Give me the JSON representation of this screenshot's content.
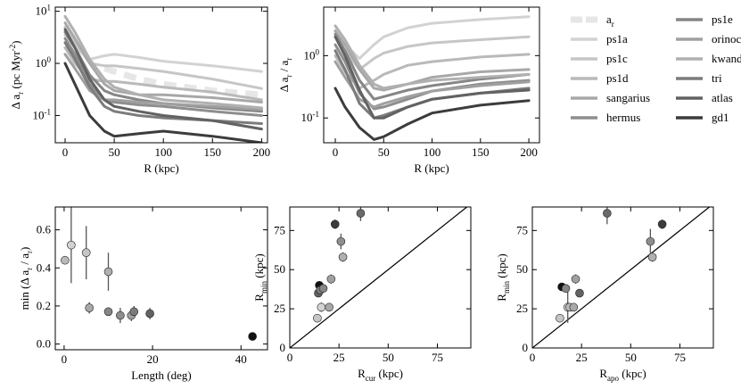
{
  "chart_data": [
    {
      "type": "line",
      "log_y": true,
      "x": [
        0,
        10,
        25,
        40,
        50,
        75,
        100,
        150,
        200
      ],
      "xlim": [
        -10,
        206
      ],
      "xticks": [
        0,
        50,
        100,
        150,
        200
      ],
      "ylim": [
        0.03,
        12
      ],
      "yticks": [
        {
          "value": 0.1,
          "label": "10^{-1}"
        },
        {
          "value": 1,
          "label": "10^{0}"
        },
        {
          "value": 10,
          "label": "10^{1}"
        }
      ],
      "xlabel": "R (kpc)",
      "ylabel": "Δ a_{r} (pc Myr^{-2})",
      "series": [
        {
          "name": "a_{r}",
          "color": "#e6e6e6",
          "dashed": true,
          "values": [
            null,
            null,
            null,
            0.8,
            0.7,
            0.5,
            0.4,
            0.3,
            0.25
          ]
        },
        {
          "name": "ps1a",
          "color": "#d2d2d2",
          "values": [
            3.5,
            2.0,
            1.2,
            1.4,
            1.5,
            1.3,
            1.1,
            0.9,
            0.7
          ]
        },
        {
          "name": "ps1c",
          "color": "#c6c6c6",
          "values": [
            5,
            2.5,
            1.0,
            0.9,
            0.9,
            0.8,
            0.7,
            0.5,
            0.33
          ]
        },
        {
          "name": "ps1d",
          "color": "#b9b9b9",
          "values": [
            2.0,
            1.0,
            0.5,
            0.45,
            0.45,
            0.4,
            0.35,
            0.28,
            0.2
          ]
        },
        {
          "name": "sangarius",
          "color": "#a8a8a8",
          "values": [
            6,
            3,
            1.0,
            0.4,
            0.3,
            0.25,
            0.25,
            0.22,
            0.18
          ]
        },
        {
          "name": "hermus",
          "color": "#8e8e8e",
          "values": [
            3,
            1.5,
            0.4,
            0.2,
            0.18,
            0.16,
            0.15,
            0.12,
            0.1
          ]
        },
        {
          "name": "ps1e",
          "color": "#868686",
          "values": [
            4,
            2,
            0.6,
            0.3,
            0.25,
            0.2,
            0.17,
            0.14,
            0.12
          ]
        },
        {
          "name": "orinoco",
          "color": "#a0a0a0",
          "values": [
            1.5,
            0.8,
            0.3,
            0.2,
            0.2,
            0.18,
            0.17,
            0.15,
            0.13
          ]
        },
        {
          "name": "kwando",
          "color": "#b0b0b0",
          "values": [
            8,
            4,
            1.2,
            0.5,
            0.35,
            0.25,
            0.2,
            0.17,
            0.14
          ]
        },
        {
          "name": "tri",
          "color": "#7c7c7c",
          "values": [
            2.5,
            1.2,
            0.35,
            0.15,
            0.12,
            0.1,
            0.09,
            0.08,
            0.07
          ]
        },
        {
          "name": "atlas",
          "color": "#626262",
          "values": [
            4.5,
            2,
            0.5,
            0.2,
            0.15,
            0.12,
            0.1,
            0.08,
            0.055
          ]
        },
        {
          "name": "gd1",
          "color": "#3c3c3c",
          "values": [
            1.0,
            0.4,
            0.1,
            0.05,
            0.04,
            0.045,
            0.05,
            0.04,
            0.03
          ]
        }
      ]
    },
    {
      "type": "line",
      "log_y": true,
      "x": [
        0,
        10,
        25,
        40,
        50,
        75,
        100,
        150,
        200
      ],
      "xlim": [
        -12,
        211
      ],
      "xticks": [
        0,
        50,
        100,
        150,
        200
      ],
      "ylim": [
        0.04,
        6
      ],
      "yticks": [
        {
          "value": 0.1,
          "label": "10^{-1}"
        },
        {
          "value": 1,
          "label": "10^{0}"
        }
      ],
      "xlabel": "R (kpc)",
      "ylabel": "Δ a_{r} / a_{r}",
      "series": [
        {
          "color": "#d2d2d2",
          "values": [
            2.5,
            1.5,
            0.9,
            1.5,
            2.0,
            2.8,
            3.3,
            3.8,
            4.2
          ]
        },
        {
          "color": "#c6c6c6",
          "values": [
            2.0,
            1.2,
            0.6,
            0.9,
            1.1,
            1.4,
            1.6,
            1.8,
            2.0
          ]
        },
        {
          "color": "#b9b9b9",
          "values": [
            1.0,
            0.55,
            0.3,
            0.4,
            0.5,
            0.7,
            0.8,
            0.95,
            1.05
          ]
        },
        {
          "color": "#a8a8a8",
          "values": [
            2.5,
            1.5,
            0.6,
            0.3,
            0.28,
            0.35,
            0.45,
            0.55,
            0.6
          ]
        },
        {
          "color": "#8e8e8e",
          "values": [
            1.5,
            0.8,
            0.25,
            0.14,
            0.15,
            0.2,
            0.27,
            0.35,
            0.4
          ]
        },
        {
          "color": "#868686",
          "values": [
            2.2,
            1.2,
            0.4,
            0.2,
            0.22,
            0.28,
            0.33,
            0.42,
            0.5
          ]
        },
        {
          "color": "#a0a0a0",
          "values": [
            0.8,
            0.45,
            0.2,
            0.15,
            0.17,
            0.22,
            0.27,
            0.33,
            0.38
          ]
        },
        {
          "color": "#b0b0b0",
          "values": [
            3,
            1.8,
            0.7,
            0.35,
            0.3,
            0.35,
            0.4,
            0.45,
            0.5
          ]
        },
        {
          "color": "#7c7c7c",
          "values": [
            1.2,
            0.6,
            0.17,
            0.1,
            0.11,
            0.15,
            0.2,
            0.25,
            0.3
          ]
        },
        {
          "color": "#626262",
          "values": [
            2.0,
            1.0,
            0.28,
            0.1,
            0.1,
            0.15,
            0.2,
            0.25,
            0.28
          ]
        },
        {
          "color": "#3c3c3c",
          "values": [
            0.3,
            0.15,
            0.07,
            0.045,
            0.05,
            0.08,
            0.12,
            0.16,
            0.19
          ]
        }
      ]
    },
    {
      "type": "scatter",
      "xlim": [
        -2,
        46
      ],
      "xticks": [
        0,
        20,
        40
      ],
      "ylim": [
        -0.03,
        0.72
      ],
      "yticks": [
        {
          "value": 0,
          "label": "0.0"
        },
        0.2,
        0.4,
        0.6
      ],
      "xlabel": "Length (deg)",
      "ylabel": "min (Δ a_{r} / a_{r})",
      "x": [
        0.2,
        1.6,
        5,
        5.7,
        10,
        10,
        12.7,
        15.2,
        15.8,
        19.4,
        42.6
      ],
      "values": [
        0.44,
        0.52,
        0.48,
        0.19,
        0.38,
        0.17,
        0.15,
        0.15,
        0.17,
        0.16,
        0.04
      ],
      "errors": [
        null,
        0.2,
        0.14,
        0.03,
        0.1,
        0.01,
        0.04,
        0.03,
        0.03,
        0.03,
        null
      ],
      "colors": [
        "#b9b9b9",
        "#d2d2d2",
        "#c6c6c6",
        "#a8a8a8",
        "#b0b0b0",
        "#868686",
        "#8e8e8e",
        "#a0a0a0",
        "#7c7c7c",
        "#626262",
        "#111111"
      ]
    },
    {
      "type": "scatter",
      "identity_line": true,
      "xlim": [
        0,
        92
      ],
      "xticks": [
        0,
        25,
        50,
        75
      ],
      "ylim": [
        0,
        90
      ],
      "yticks": [
        0,
        25,
        50,
        75
      ],
      "xlabel": "R_{cur} (kpc)",
      "ylabel": "R_{min} (kpc)",
      "x": [
        14,
        14.5,
        15,
        15.5,
        16,
        17,
        20,
        21,
        23,
        26,
        27,
        36
      ],
      "values": [
        19,
        35,
        40,
        37,
        26,
        38,
        26,
        44,
        79,
        68,
        58,
        86
      ],
      "errors": [
        null,
        null,
        null,
        null,
        3,
        null,
        null,
        3,
        3,
        5,
        3,
        5
      ],
      "colors": [
        "#c6c6c6",
        "#626262",
        "#111111",
        "#7c7c7c",
        "#d2d2d2",
        "#868686",
        "#a8a8a8",
        "#a0a0a0",
        "#3c3c3c",
        "#8e8e8e",
        "#b0b0b0",
        "#6a6a6a"
      ]
    },
    {
      "type": "scatter",
      "identity_line": true,
      "xlim": [
        0,
        92
      ],
      "xticks": [
        0,
        25,
        50,
        75
      ],
      "ylim": [
        0,
        90
      ],
      "yticks": [
        0,
        25,
        50,
        75
      ],
      "xlabel": "R_{apo} (kpc)",
      "ylabel": "R_{min} (kpc)",
      "x": [
        14,
        15,
        17,
        18,
        19,
        21,
        22,
        24,
        38,
        60,
        61,
        66
      ],
      "values": [
        19,
        39,
        38,
        26,
        26,
        26,
        44,
        35,
        86,
        68,
        58,
        79
      ],
      "errors": [
        null,
        null,
        null,
        10,
        null,
        null,
        3,
        null,
        7,
        8,
        3,
        3
      ],
      "colors": [
        "#c6c6c6",
        "#111111",
        "#868686",
        "#d2d2d2",
        "#b9b9b9",
        "#a8a8a8",
        "#a0a0a0",
        "#626262",
        "#6a6a6a",
        "#8e8e8e",
        "#b0b0b0",
        "#3c3c3c"
      ]
    }
  ]
}
